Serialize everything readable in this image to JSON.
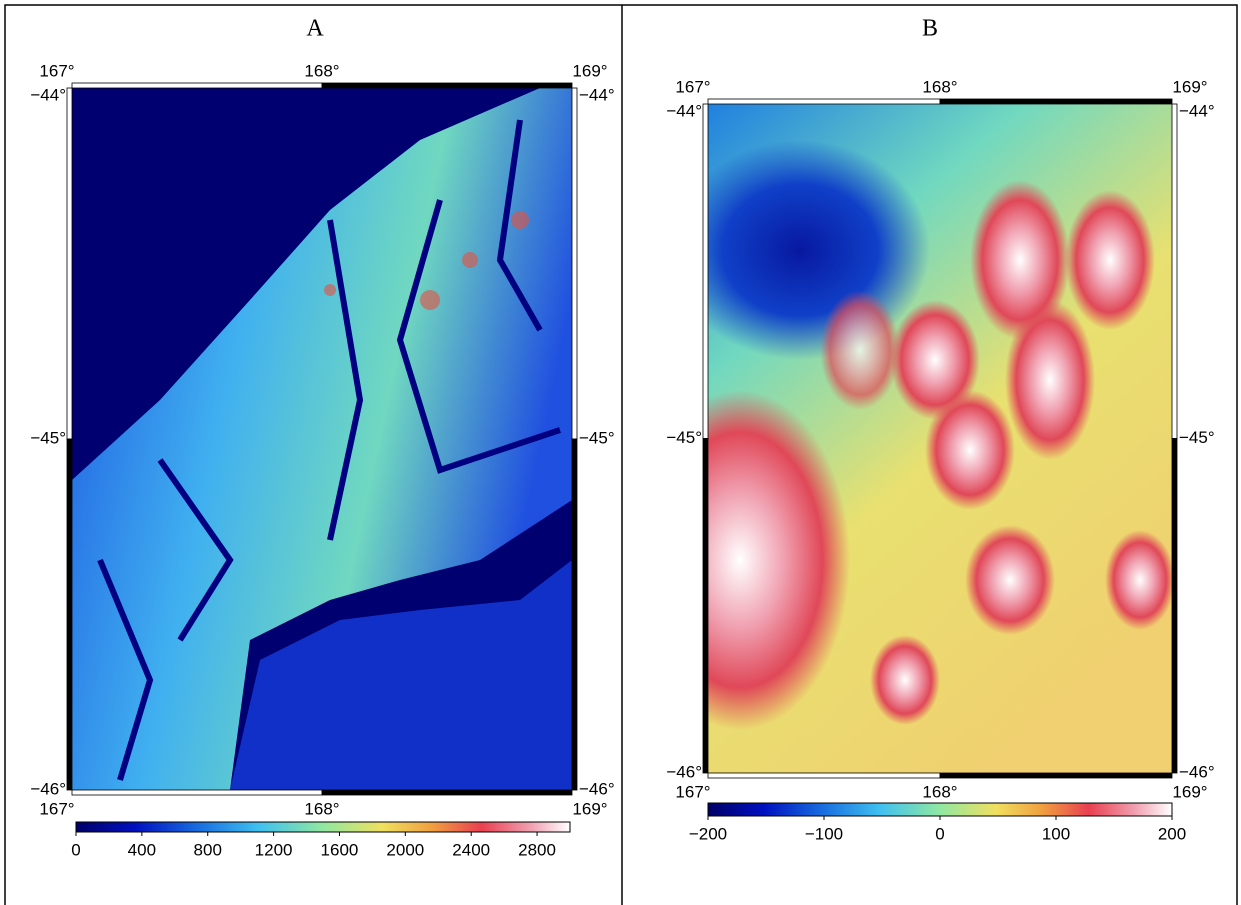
{
  "panels": [
    {
      "label": "A",
      "lon_ticks": [
        "167°",
        "168°",
        "169°"
      ],
      "lat_ticks": [
        "−44°",
        "−45°",
        "−46°"
      ],
      "colorbar_ticks": [
        "0",
        "400",
        "800",
        "1200",
        "1600",
        "2000",
        "2400",
        "2800"
      ]
    },
    {
      "label": "B",
      "lon_ticks": [
        "167°",
        "168°",
        "169°"
      ],
      "lat_ticks": [
        "−44°",
        "−45°",
        "−46°"
      ],
      "colorbar_ticks": [
        "−200",
        "−100",
        "0",
        "100",
        "200"
      ]
    }
  ]
}
